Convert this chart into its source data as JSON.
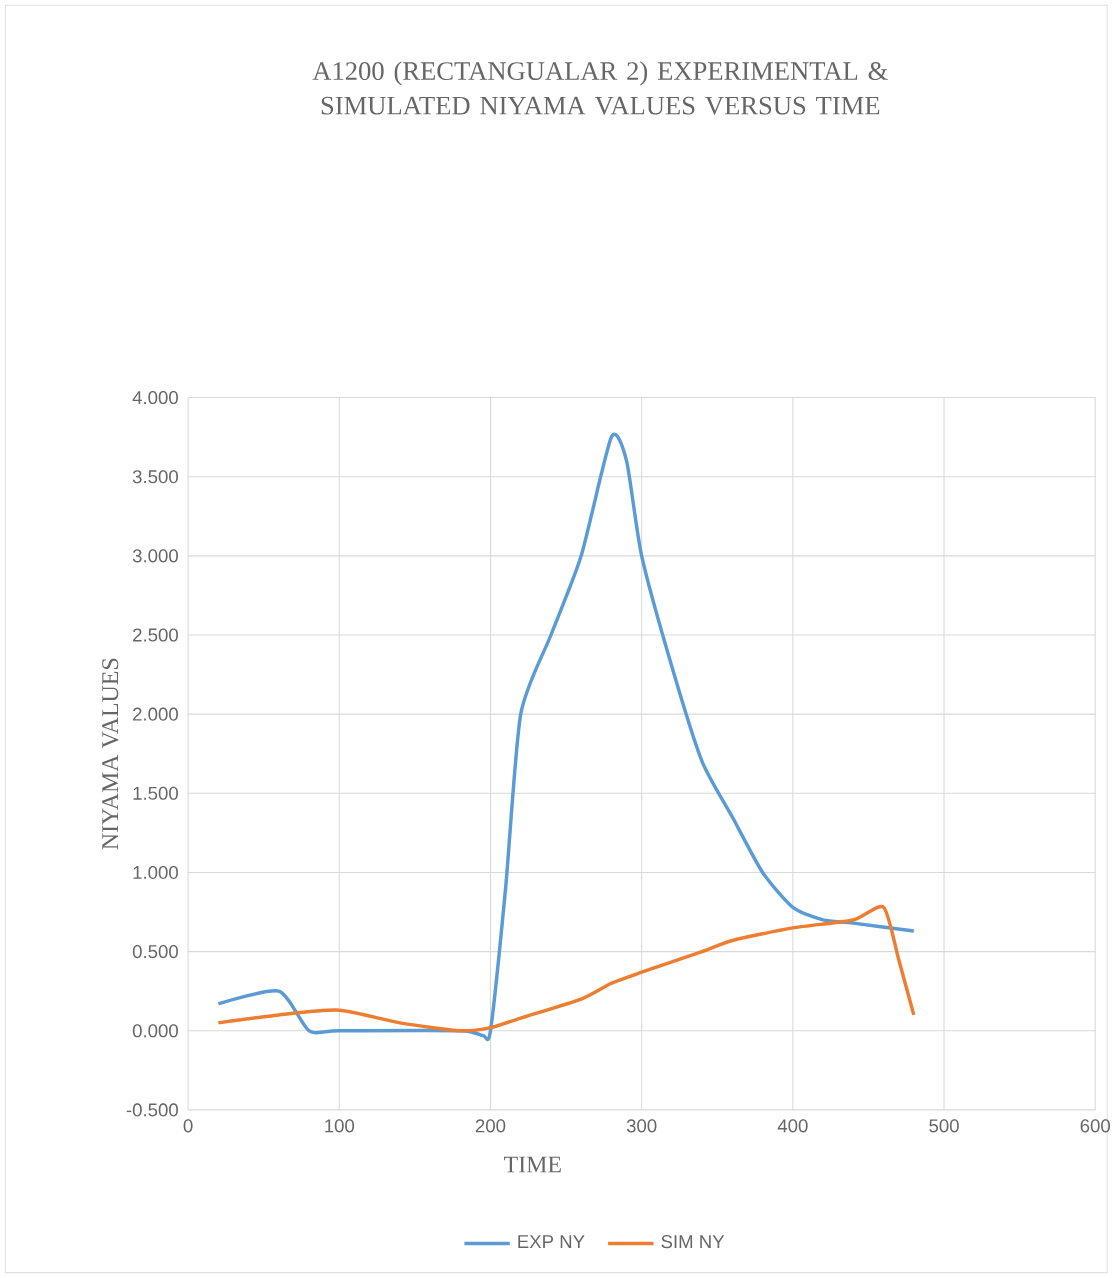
{
  "chart_data": {
    "type": "line",
    "title": "A1200 (RECTANGUALAR  2) EXPERIMENTAL & SIMULATED NIYAMA VALUES VERSUS TIME",
    "xlabel": "TIME",
    "ylabel": "NIYAMA VALUES",
    "xlim": [
      0,
      600
    ],
    "xticks": [
      0,
      100,
      200,
      300,
      400,
      500,
      600
    ],
    "ylim": [
      -0.5,
      4
    ],
    "yticks": [
      {
        "value": -0.5,
        "label": "-0.500"
      },
      {
        "value": 0,
        "label": "0.000"
      },
      {
        "value": 0.5,
        "label": "0.500"
      },
      {
        "value": 1,
        "label": "1.000"
      },
      {
        "value": 1.5,
        "label": "1.500"
      },
      {
        "value": 2,
        "label": "2.000"
      },
      {
        "value": 2.5,
        "label": "2.500"
      },
      {
        "value": 3,
        "label": "3.000"
      },
      {
        "value": 3.5,
        "label": "3.500"
      },
      {
        "value": 4,
        "label": "4.000"
      }
    ],
    "grid": true,
    "legend": "bottom",
    "marker": "none",
    "line_style": "solid",
    "series": [
      {
        "name": "EXP NY",
        "color": "#5b9bd5",
        "x": [
          20,
          60,
          80,
          100,
          180,
          195,
          200,
          210,
          220,
          240,
          260,
          280,
          290,
          300,
          320,
          340,
          360,
          380,
          400,
          420,
          440,
          480
        ],
        "values": [
          0.17,
          0.25,
          0.0,
          0.0,
          0.0,
          -0.03,
          0.0,
          0.9,
          2.0,
          2.5,
          3.0,
          3.75,
          3.6,
          3.0,
          2.3,
          1.7,
          1.35,
          1.0,
          0.78,
          0.7,
          0.68,
          0.63
        ]
      },
      {
        "name": "SIM NY",
        "color": "#ed7d31",
        "x": [
          20,
          60,
          100,
          140,
          180,
          200,
          220,
          260,
          280,
          300,
          340,
          360,
          400,
          440,
          460,
          470,
          480
        ],
        "values": [
          0.05,
          0.1,
          0.13,
          0.05,
          0.0,
          0.02,
          0.08,
          0.2,
          0.3,
          0.37,
          0.5,
          0.57,
          0.65,
          0.7,
          0.78,
          0.45,
          0.1
        ]
      }
    ]
  }
}
